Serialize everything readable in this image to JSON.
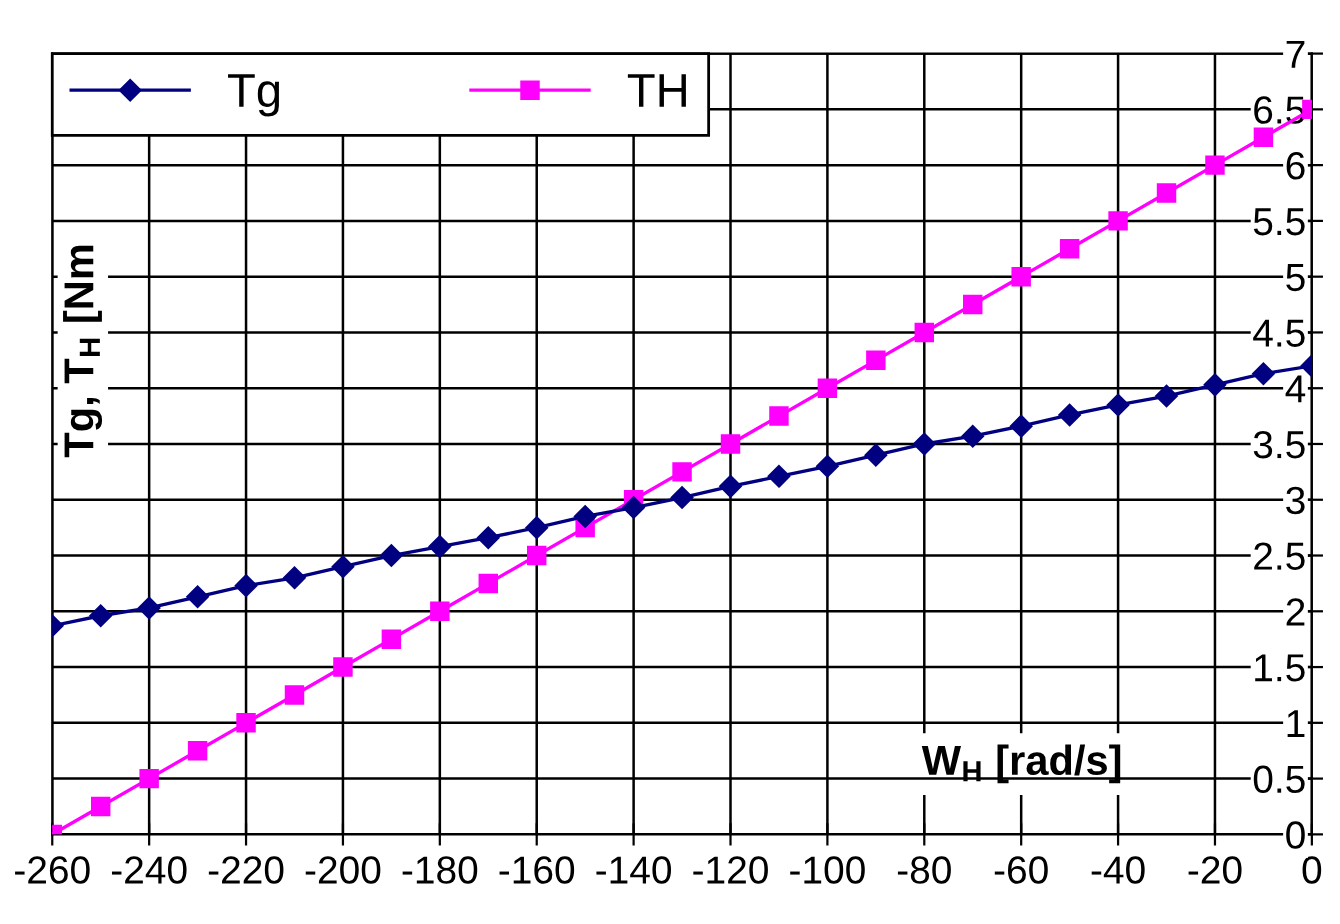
{
  "chart_data": {
    "type": "line",
    "xlabel": "W$_{H}$ [rad/s]",
    "ylabel": "Tg, T$_{H}$ [Nm",
    "x": [
      -260,
      -250,
      -240,
      -230,
      -220,
      -210,
      -200,
      -190,
      -180,
      -170,
      -160,
      -150,
      -140,
      -130,
      -120,
      -110,
      -100,
      -90,
      -80,
      -70,
      -60,
      -50,
      -40,
      -30,
      -20,
      -10,
      0
    ],
    "series": [
      {
        "name": "Tg",
        "color": "#000080",
        "marker": "diamond",
        "values": [
          1.87,
          1.96,
          2.03,
          2.13,
          2.23,
          2.3,
          2.4,
          2.5,
          2.58,
          2.66,
          2.75,
          2.85,
          2.93,
          3.02,
          3.12,
          3.21,
          3.3,
          3.4,
          3.5,
          3.57,
          3.66,
          3.76,
          3.85,
          3.93,
          4.03,
          4.13,
          4.2
        ]
      },
      {
        "name": "TH",
        "color": "#ff00ff",
        "marker": "square",
        "values": [
          0,
          0.25,
          0.5,
          0.75,
          1,
          1.25,
          1.5,
          1.75,
          2,
          2.25,
          2.5,
          2.75,
          3,
          3.25,
          3.5,
          3.75,
          4,
          4.25,
          4.5,
          4.75,
          5,
          5.25,
          5.5,
          5.75,
          6,
          6.25,
          6.5
        ]
      }
    ],
    "xlim": [
      -260,
      0
    ],
    "ylim": [
      0,
      7
    ],
    "xticks": [
      -260,
      -240,
      -220,
      -200,
      -180,
      -160,
      -140,
      -120,
      -100,
      -80,
      -60,
      -40,
      -20,
      0
    ],
    "yticks": [
      0,
      0.5,
      1,
      1.5,
      2,
      2.5,
      3,
      3.5,
      4,
      4.5,
      5,
      5.5,
      6,
      6.5,
      7
    ],
    "grid": true,
    "legend": "top left",
    "line_style": "solid"
  }
}
